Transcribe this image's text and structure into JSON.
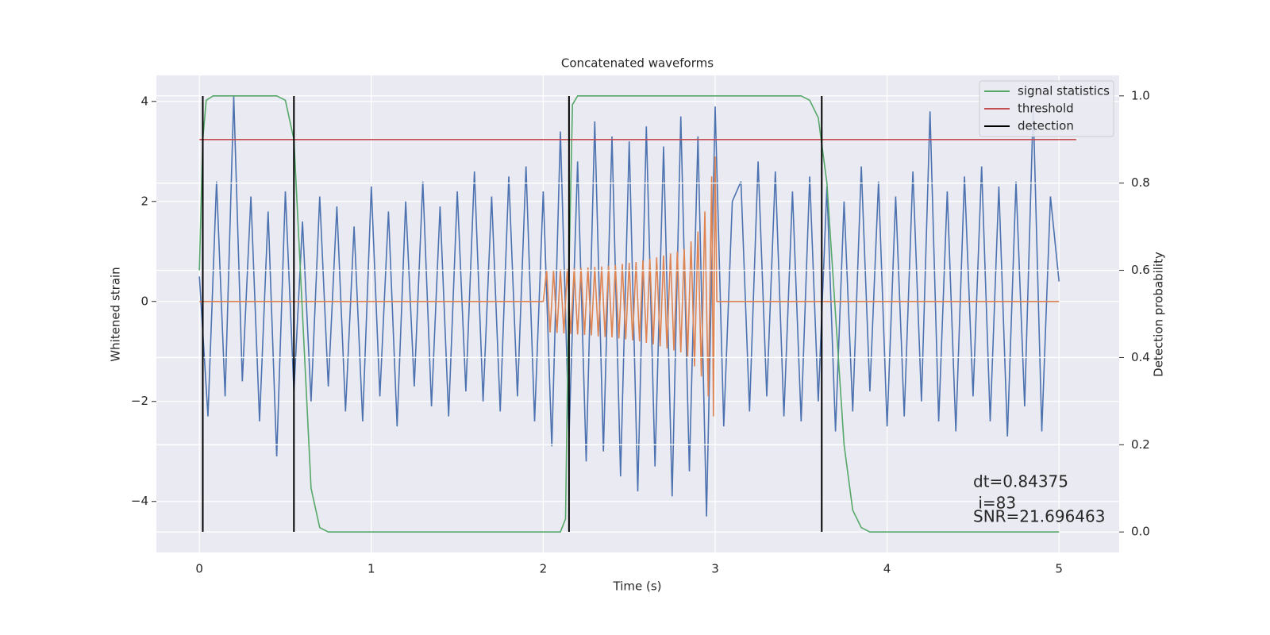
{
  "chart_data": {
    "type": "line",
    "title": "Concatenated waveforms",
    "xlabel": "Time (s)",
    "ylabel": "Whitened strain",
    "y2label": "Detection probability",
    "xlim": [
      -0.25,
      5.35
    ],
    "xticks": [
      0,
      1,
      2,
      3,
      4,
      5
    ],
    "ylim": [
      -5.02,
      4.52
    ],
    "yticks": [
      -4,
      -2,
      0,
      2,
      4
    ],
    "y2lim": [
      -0.047,
      1.047
    ],
    "y2ticks": [
      {
        "value": 0,
        "label": "0.0"
      },
      {
        "value": 0.2,
        "label": "0.2"
      },
      {
        "value": 0.4,
        "label": "0.4"
      },
      {
        "value": 0.6,
        "label": "0.6"
      },
      {
        "value": 0.8,
        "label": "0.8"
      },
      {
        "value": 1,
        "label": "1.0"
      }
    ],
    "grid": true,
    "legend": "upper right",
    "annotations": [
      "dt=0.84375",
      " i=83",
      "SNR=21.696463"
    ],
    "series": [
      {
        "color": "#4c72b0",
        "x": [
          0,
          0.05,
          0.1,
          0.15,
          0.2,
          0.25,
          0.3,
          0.35,
          0.4,
          0.45,
          0.5,
          0.55,
          0.6,
          0.65,
          0.7,
          0.75,
          0.8,
          0.85,
          0.9,
          0.95,
          1,
          1.05,
          1.1,
          1.15,
          1.2,
          1.25,
          1.3,
          1.35,
          1.4,
          1.45,
          1.5,
          1.55,
          1.6,
          1.65,
          1.7,
          1.75,
          1.8,
          1.85,
          1.9,
          1.95,
          2,
          2.05,
          2.1,
          2.15,
          2.2,
          2.25,
          2.3,
          2.35,
          2.4,
          2.45,
          2.5,
          2.55,
          2.6,
          2.65,
          2.7,
          2.75,
          2.8,
          2.85,
          2.9,
          2.95,
          3,
          3.05,
          3.1,
          3.15,
          3.2,
          3.25,
          3.3,
          3.35,
          3.4,
          3.45,
          3.5,
          3.55,
          3.6,
          3.65,
          3.7,
          3.75,
          3.8,
          3.85,
          3.9,
          3.95,
          4,
          4.05,
          4.1,
          4.15,
          4.2,
          4.25,
          4.3,
          4.35,
          4.4,
          4.45,
          4.5,
          4.55,
          4.6,
          4.65,
          4.7,
          4.75,
          4.8,
          4.85,
          4.9,
          4.95,
          5
        ],
        "values": [
          0.5,
          -2.3,
          2.4,
          -1.9,
          4.1,
          -1.6,
          2.1,
          -2.4,
          1.8,
          -3.1,
          2.2,
          -1.8,
          1.6,
          -2.0,
          2.1,
          -1.7,
          1.9,
          -2.2,
          1.5,
          -2.4,
          2.3,
          -1.9,
          1.8,
          -2.5,
          2.0,
          -1.7,
          2.4,
          -2.1,
          1.9,
          -2.3,
          2.2,
          -1.8,
          2.6,
          -2.0,
          2.1,
          -2.2,
          2.5,
          -1.9,
          2.7,
          -2.4,
          2.2,
          -2.9,
          3.4,
          -2.7,
          2.8,
          -3.2,
          3.6,
          -3.0,
          3.3,
          -3.5,
          3.2,
          -3.8,
          3.5,
          -3.3,
          3.1,
          -3.9,
          3.7,
          -3.4,
          3.3,
          -4.3,
          3.9,
          -2.5,
          2.0,
          2.4,
          -2.2,
          2.8,
          -1.9,
          2.6,
          -2.3,
          2.2,
          -2.4,
          2.5,
          -2.0,
          2.3,
          -2.6,
          2.0,
          -2.2,
          2.7,
          -1.8,
          2.4,
          -2.5,
          2.1,
          -2.3,
          2.6,
          -2.0,
          3.8,
          -2.4,
          2.2,
          -2.6,
          2.5,
          -1.9,
          2.7,
          -2.4,
          2.3,
          -2.7,
          2.4,
          -2.1,
          3.9,
          -2.6,
          2.1,
          0.4
        ]
      },
      {
        "color": "#dd8452",
        "x": [
          0,
          2,
          2.02,
          2.04,
          2.06,
          2.08,
          2.1,
          2.12,
          2.14,
          2.16,
          2.18,
          2.2,
          2.22,
          2.24,
          2.26,
          2.28,
          2.3,
          2.32,
          2.34,
          2.36,
          2.38,
          2.4,
          2.42,
          2.44,
          2.46,
          2.48,
          2.5,
          2.52,
          2.54,
          2.56,
          2.58,
          2.6,
          2.62,
          2.64,
          2.66,
          2.68,
          2.7,
          2.72,
          2.74,
          2.76,
          2.78,
          2.8,
          2.82,
          2.84,
          2.86,
          2.88,
          2.9,
          2.92,
          2.94,
          2.96,
          2.98,
          2.99,
          3,
          3.01,
          5
        ],
        "values": [
          0,
          0,
          0.62,
          -0.62,
          0.63,
          -0.63,
          0.64,
          -0.64,
          0.65,
          -0.65,
          0.66,
          -0.66,
          0.67,
          -0.67,
          0.68,
          -0.68,
          0.69,
          -0.7,
          0.7,
          -0.71,
          0.71,
          -0.72,
          0.73,
          -0.74,
          0.75,
          -0.76,
          0.77,
          -0.78,
          0.79,
          -0.8,
          0.82,
          -0.83,
          0.85,
          -0.86,
          0.88,
          -0.9,
          0.92,
          -0.94,
          0.96,
          -0.98,
          1.0,
          -1.02,
          1.05,
          -1.1,
          1.2,
          -1.3,
          1.4,
          -1.5,
          1.8,
          -1.9,
          2.5,
          -2.3,
          2.9,
          0,
          0
        ]
      },
      {
        "name": "signal statistics",
        "color": "#55a868",
        "axis": "y2",
        "x": [
          0,
          0.02,
          0.04,
          0.08,
          0.45,
          0.5,
          0.55,
          0.6,
          0.65,
          0.7,
          0.75,
          2.1,
          2.13,
          2.15,
          2.17,
          2.2,
          3.5,
          3.55,
          3.6,
          3.65,
          3.7,
          3.75,
          3.8,
          3.85,
          3.9,
          5
        ],
        "values": [
          0.6,
          0.9,
          0.99,
          1.0,
          1.0,
          0.99,
          0.9,
          0.5,
          0.1,
          0.01,
          0.0,
          0.0,
          0.03,
          0.6,
          0.98,
          1.0,
          1.0,
          0.99,
          0.95,
          0.8,
          0.5,
          0.2,
          0.05,
          0.01,
          0.0,
          0.0
        ]
      },
      {
        "name": "threshold",
        "color": "#c44e52",
        "axis": "y2",
        "x": [
          0,
          5.1
        ],
        "values": [
          0.9,
          0.9
        ]
      },
      {
        "name": "detection",
        "color": "#000000",
        "type": "vline",
        "x": [
          0.02,
          0.55,
          2.15,
          3.62
        ]
      }
    ]
  }
}
